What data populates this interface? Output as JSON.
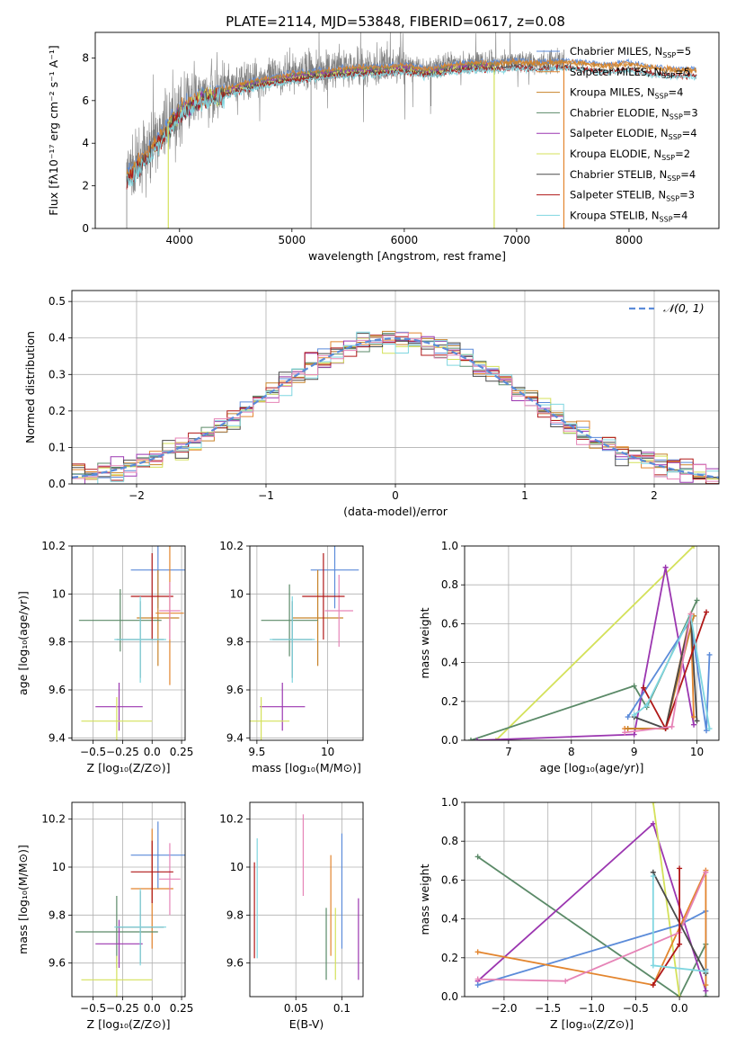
{
  "figure": {
    "title": "PLATE=2114, MJD=53848, FIBERID=0617, z=0.08"
  },
  "colors": {
    "Chabrier MILES": "#5b8bd9",
    "Salpeter MILES": "#e3852e",
    "Kroupa MILES": "#c8832a",
    "Chabrier ELODIE": "#5b8a68",
    "Salpeter ELODIE": "#9b36b0",
    "Kroupa ELODIE": "#d4e15a",
    "Chabrier STELIB": "#4a4a4a",
    "Salpeter STELIB": "#b01818",
    "Kroupa STELIB": "#7fd6e0",
    "data": "#808080",
    "normal": "#5b8bd9",
    "pink": "#e684b7"
  },
  "chart_data": [
    {
      "id": "spectrum",
      "type": "line",
      "title": "PLATE=2114, MJD=53848, FIBERID=0617, z=0.08",
      "xlabel": "wavelength [Angstrom, rest frame]",
      "ylabel": "Flux [fλ10⁻¹⁷ erg cm⁻² s⁻¹ A⁻¹]",
      "xlim": [
        3250,
        8800
      ],
      "ylim": [
        0,
        9.2
      ],
      "xticks": [
        4000,
        5000,
        6000,
        7000,
        8000
      ],
      "yticks": [
        0,
        2,
        4,
        6,
        8
      ],
      "grid": false,
      "legend_position": "right",
      "legend": [
        {
          "label": "Chabrier MILES, N",
          "sub": "SSP",
          "suffix": "=5"
        },
        {
          "label": "Salpeter MILES, N",
          "sub": "SSP",
          "suffix": "=5"
        },
        {
          "label": "Kroupa MILES, N",
          "sub": "SSP",
          "suffix": "=4"
        },
        {
          "label": "Chabrier ELODIE, N",
          "sub": "SSP",
          "suffix": "=3"
        },
        {
          "label": "Salpeter ELODIE, N",
          "sub": "SSP",
          "suffix": "=4"
        },
        {
          "label": "Kroupa ELODIE, N",
          "sub": "SSP",
          "suffix": "=2"
        },
        {
          "label": "Chabrier STELIB, N",
          "sub": "SSP",
          "suffix": "=4"
        },
        {
          "label": "Salpeter STELIB, N",
          "sub": "SSP",
          "suffix": "=3"
        },
        {
          "label": "Kroupa STELIB, N",
          "sub": "SSP",
          "suffix": "=4"
        }
      ],
      "model_trend": {
        "x": [
          3550,
          3650,
          3750,
          3900,
          4000,
          4100,
          4200,
          4300,
          4400,
          4600,
          4800,
          5000,
          5200,
          5400,
          5600,
          5800,
          6000,
          6200,
          6400,
          6600,
          6800,
          7000,
          7200,
          7400,
          7600,
          7800,
          8000,
          8200,
          8400,
          8600
        ],
        "y": [
          2.6,
          3.2,
          3.8,
          4.9,
          5.6,
          6.0,
          6.3,
          6.4,
          6.6,
          6.9,
          7.1,
          7.3,
          7.4,
          7.5,
          7.6,
          7.6,
          7.7,
          7.5,
          7.7,
          7.8,
          7.8,
          7.9,
          7.8,
          7.9,
          7.8,
          7.7,
          7.8,
          7.6,
          7.5,
          7.5
        ]
      }
    },
    {
      "id": "residuals",
      "type": "line",
      "xlabel": "(data-model)/error",
      "ylabel": "Normed distribution",
      "xlim": [
        -2.5,
        2.5
      ],
      "ylim": [
        0,
        0.53
      ],
      "xticks": [
        -2,
        -1,
        0,
        1,
        2
      ],
      "yticks": [
        0.0,
        0.1,
        0.2,
        0.3,
        0.4,
        0.5
      ],
      "grid": true,
      "legend_position": "top-right",
      "legend": [
        {
          "label": "𝒩(0, 1)",
          "style": "dashed"
        }
      ]
    },
    {
      "id": "age_vs_Z",
      "type": "scatter",
      "xlabel": "Z [log₁₀(Z/Z⊙)]",
      "ylabel": "age  [log₁₀(age/yr)]",
      "xlim": [
        -0.68,
        0.28
      ],
      "ylim": [
        9.39,
        10.2
      ],
      "xticks": [
        -0.5,
        -0.25,
        0.0,
        0.25
      ],
      "yticks": [
        9.4,
        9.6,
        9.8,
        10.0,
        10.2
      ],
      "grid": true,
      "points": [
        {
          "x": 0.05,
          "y": 10.1,
          "xerr": 0.23,
          "yerr": 0.16,
          "series": "Chabrier MILES"
        },
        {
          "x": 0.05,
          "y": 9.9,
          "xerr": 0.18,
          "yerr": 0.2,
          "series": "Kroupa MILES"
        },
        {
          "x": 0.15,
          "y": 9.92,
          "xerr": 0.12,
          "yerr": 0.3,
          "series": "Salpeter MILES"
        },
        {
          "x": -0.27,
          "y": 9.89,
          "xerr": 0.35,
          "yerr": 0.13,
          "series": "Chabrier ELODIE"
        },
        {
          "x": -0.28,
          "y": 9.53,
          "xerr": 0.2,
          "yerr": 0.1,
          "series": "Salpeter ELODIE"
        },
        {
          "x": -0.3,
          "y": 9.47,
          "xerr": 0.3,
          "yerr": 0.1,
          "series": "Kroupa ELODIE"
        },
        {
          "x": -0.1,
          "y": 9.81,
          "xerr": 0.2,
          "yerr": 0.16,
          "series": "Chabrier STELIB"
        },
        {
          "x": 0.0,
          "y": 9.99,
          "xerr": 0.18,
          "yerr": 0.18,
          "series": "Salpeter STELIB"
        },
        {
          "x": -0.1,
          "y": 9.81,
          "xerr": 0.22,
          "yerr": 0.18,
          "series": "Kroupa STELIB"
        },
        {
          "x": 0.15,
          "y": 9.93,
          "xerr": 0.09,
          "yerr": 0.12,
          "series": "pink"
        }
      ]
    },
    {
      "id": "age_vs_mass",
      "type": "scatter",
      "xlabel": "mass [log₁₀(M/M⊙)]",
      "ylabel": "",
      "xlim": [
        9.45,
        10.25
      ],
      "ylim": [
        9.39,
        10.2
      ],
      "xticks": [
        9.5,
        10.0
      ],
      "yticks": [
        9.4,
        9.6,
        9.8,
        10.0,
        10.2
      ],
      "grid": true,
      "points": [
        {
          "x": 10.05,
          "y": 10.1,
          "xerr": 0.17,
          "yerr": 0.16,
          "series": "Chabrier MILES"
        },
        {
          "x": 9.93,
          "y": 9.9,
          "xerr": 0.18,
          "yerr": 0.2,
          "series": "Kroupa MILES"
        },
        {
          "x": 10.08,
          "y": 9.93,
          "xerr": 0.1,
          "yerr": 0.15,
          "series": "pink"
        },
        {
          "x": 9.73,
          "y": 9.89,
          "xerr": 0.2,
          "yerr": 0.15,
          "series": "Chabrier ELODIE"
        },
        {
          "x": 9.68,
          "y": 9.53,
          "xerr": 0.16,
          "yerr": 0.1,
          "series": "Salpeter ELODIE"
        },
        {
          "x": 9.53,
          "y": 9.47,
          "xerr": 0.2,
          "yerr": 0.1,
          "series": "Kroupa ELODIE"
        },
        {
          "x": 9.75,
          "y": 9.81,
          "xerr": 0.14,
          "yerr": 0.16,
          "series": "Chabrier STELIB"
        },
        {
          "x": 9.97,
          "y": 9.99,
          "xerr": 0.15,
          "yerr": 0.18,
          "series": "Salpeter STELIB"
        },
        {
          "x": 9.75,
          "y": 9.81,
          "xerr": 0.16,
          "yerr": 0.18,
          "series": "Kroupa STELIB"
        }
      ]
    },
    {
      "id": "massweight_vs_age",
      "type": "line",
      "xlabel": "age  [log₁₀(age/yr)]",
      "ylabel": "mass weight",
      "xlim": [
        6.3,
        10.35
      ],
      "ylim": [
        0,
        1.0
      ],
      "xticks": [
        7,
        8,
        9,
        10
      ],
      "yticks": [
        0.0,
        0.2,
        0.4,
        0.6,
        0.8,
        1.0
      ],
      "grid": true,
      "series": [
        {
          "name": "Kroupa ELODIE",
          "x": [
            6.8,
            9.95
          ],
          "y": [
            0.0,
            1.0
          ]
        },
        {
          "name": "Chabrier ELODIE",
          "x": [
            6.4,
            9.0,
            9.2,
            10.0
          ],
          "y": [
            0.0,
            0.28,
            0.17,
            0.72
          ]
        },
        {
          "name": "Salpeter ELODIE",
          "x": [
            6.5,
            9.0,
            9.5,
            9.95
          ],
          "y": [
            0.0,
            0.03,
            0.89,
            0.08
          ]
        },
        {
          "name": "Chabrier MILES",
          "x": [
            8.9,
            9.9,
            10.15,
            10.2
          ],
          "y": [
            0.12,
            0.62,
            0.05,
            0.44
          ]
        },
        {
          "name": "Salpeter MILES",
          "x": [
            8.85,
            9.5,
            9.9,
            9.95
          ],
          "y": [
            0.06,
            0.06,
            0.65,
            0.12
          ]
        },
        {
          "name": "Kroupa MILES",
          "x": [
            8.9,
            9.5,
            9.95
          ],
          "y": [
            0.06,
            0.06,
            0.64
          ]
        },
        {
          "name": "Chabrier STELIB",
          "x": [
            9.0,
            9.5,
            9.9,
            10.0
          ],
          "y": [
            0.12,
            0.06,
            0.64,
            0.1
          ]
        },
        {
          "name": "Salpeter STELIB",
          "x": [
            9.15,
            9.5,
            10.15
          ],
          "y": [
            0.27,
            0.06,
            0.66
          ]
        },
        {
          "name": "Kroupa STELIB",
          "x": [
            9.0,
            9.2,
            9.9,
            10.2
          ],
          "y": [
            0.13,
            0.18,
            0.64,
            0.06
          ]
        },
        {
          "name": "pink",
          "x": [
            8.85,
            9.6,
            9.9
          ],
          "y": [
            0.04,
            0.07,
            0.65
          ]
        }
      ]
    },
    {
      "id": "mass_vs_Z",
      "type": "scatter",
      "xlabel": "Z [log₁₀(Z/Z⊙)]",
      "ylabel": "mass [log₁₀(M/M⊙)]",
      "xlim": [
        -0.68,
        0.28
      ],
      "ylim": [
        9.46,
        10.27
      ],
      "xticks": [
        -0.5,
        -0.25,
        0.0,
        0.25
      ],
      "yticks": [
        9.6,
        9.8,
        10.0,
        10.2
      ],
      "grid": true,
      "points": [
        {
          "x": 0.05,
          "y": 10.05,
          "xerr": 0.23,
          "yerr": 0.14,
          "series": "Chabrier MILES"
        },
        {
          "x": 0.0,
          "y": 9.91,
          "xerr": 0.18,
          "yerr": 0.25,
          "series": "Salpeter MILES"
        },
        {
          "x": 0.15,
          "y": 9.95,
          "xerr": 0.09,
          "yerr": 0.15,
          "series": "pink"
        },
        {
          "x": -0.3,
          "y": 9.73,
          "xerr": 0.35,
          "yerr": 0.15,
          "series": "Chabrier ELODIE"
        },
        {
          "x": -0.28,
          "y": 9.68,
          "xerr": 0.2,
          "yerr": 0.1,
          "series": "Salpeter ELODIE"
        },
        {
          "x": -0.3,
          "y": 9.53,
          "xerr": 0.3,
          "yerr": 0.1,
          "series": "Kroupa ELODIE"
        },
        {
          "x": -0.1,
          "y": 9.75,
          "xerr": 0.2,
          "yerr": 0.15,
          "series": "Chabrier STELIB"
        },
        {
          "x": 0.0,
          "y": 9.98,
          "xerr": 0.18,
          "yerr": 0.13,
          "series": "Salpeter STELIB"
        },
        {
          "x": -0.1,
          "y": 9.75,
          "xerr": 0.22,
          "yerr": 0.16,
          "series": "Kroupa STELIB"
        }
      ]
    },
    {
      "id": "mass_vs_ebv",
      "type": "scatter",
      "xlabel": "E(B-V)",
      "ylabel": "",
      "xlim": [
        0.0,
        0.123
      ],
      "ylim": [
        9.46,
        10.27
      ],
      "xticks": [
        0.05,
        0.1
      ],
      "yticks": [
        9.6,
        9.8,
        10.0,
        10.2
      ],
      "grid": true,
      "points": [
        {
          "x": 0.005,
          "y": 9.82,
          "yerr": 0.2,
          "series": "Salpeter STELIB"
        },
        {
          "x": 0.008,
          "y": 9.87,
          "yerr": 0.25,
          "series": "Kroupa STELIB"
        },
        {
          "x": 0.058,
          "y": 10.05,
          "yerr": 0.17,
          "series": "pink"
        },
        {
          "x": 0.083,
          "y": 9.68,
          "yerr": 0.15,
          "series": "Chabrier ELODIE"
        },
        {
          "x": 0.088,
          "y": 9.84,
          "yerr": 0.21,
          "series": "Salpeter MILES"
        },
        {
          "x": 0.093,
          "y": 9.68,
          "yerr": 0.15,
          "series": "Kroupa ELODIE"
        },
        {
          "x": 0.1,
          "y": 9.9,
          "yerr": 0.24,
          "series": "Chabrier MILES"
        },
        {
          "x": 0.118,
          "y": 9.7,
          "yerr": 0.17,
          "series": "Salpeter ELODIE"
        }
      ]
    },
    {
      "id": "massweight_vs_Z",
      "type": "line",
      "xlabel": "Z [log₁₀(Z/Z⊙)]",
      "ylabel": "mass weight",
      "xlim": [
        -2.45,
        0.45
      ],
      "ylim": [
        0,
        1.0
      ],
      "xticks": [
        -2.0,
        -1.5,
        -1.0,
        -0.5,
        0.0
      ],
      "yticks": [
        0.0,
        0.2,
        0.4,
        0.6,
        0.8,
        1.0
      ],
      "grid": true,
      "series": [
        {
          "name": "Chabrier ELODIE",
          "x": [
            -2.3,
            0.0,
            0.3,
            0.3
          ],
          "y": [
            0.72,
            0.0,
            0.27,
            0.0
          ]
        },
        {
          "name": "Salpeter ELODIE",
          "x": [
            -2.3,
            -0.3,
            0.3
          ],
          "y": [
            0.08,
            0.89,
            0.03
          ]
        },
        {
          "name": "Kroupa ELODIE",
          "x": [
            -0.3,
            0.0
          ],
          "y": [
            1.0,
            0.0
          ]
        },
        {
          "name": "Chabrier MILES",
          "x": [
            -2.3,
            0.0,
            0.3,
            0.3
          ],
          "y": [
            0.06,
            0.37,
            0.44,
            0.14
          ]
        },
        {
          "name": "Salpeter MILES",
          "x": [
            -2.3,
            -0.3,
            0.3,
            0.3
          ],
          "y": [
            0.23,
            0.06,
            0.65,
            0.06
          ]
        },
        {
          "name": "pink",
          "x": [
            -2.3,
            -1.3,
            0.0,
            0.3
          ],
          "y": [
            0.09,
            0.08,
            0.33,
            0.64
          ]
        },
        {
          "name": "Chabrier STELIB",
          "x": [
            -0.3,
            0.3
          ],
          "y": [
            0.64,
            0.12
          ]
        },
        {
          "name": "Salpeter STELIB",
          "x": [
            -0.3,
            0.0,
            0.0
          ],
          "y": [
            0.06,
            0.27,
            0.66
          ]
        },
        {
          "name": "Kroupa STELIB",
          "x": [
            -0.3,
            -0.3,
            0.3
          ],
          "y": [
            0.62,
            0.16,
            0.13
          ]
        }
      ]
    }
  ]
}
